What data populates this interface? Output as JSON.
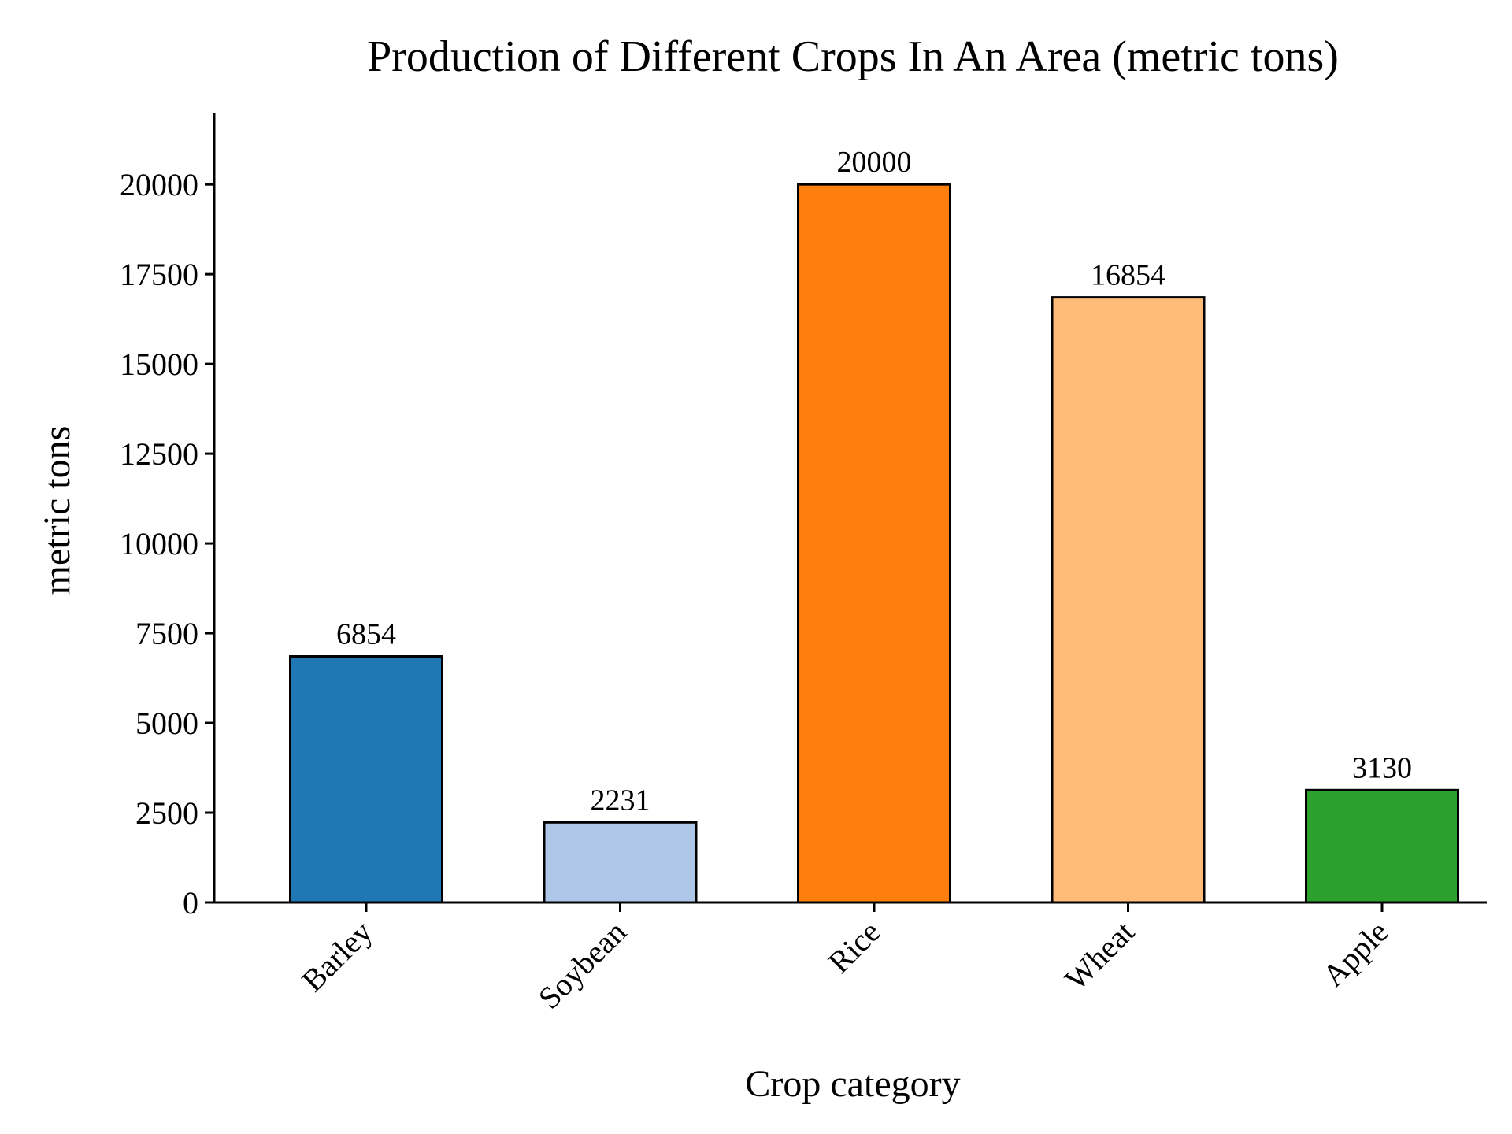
{
  "chart_data": {
    "type": "bar",
    "title": "Production of Different Crops In An Area (metric tons)",
    "xlabel": "Crop category",
    "ylabel": "metric tons",
    "categories": [
      "Barley",
      "Soybean",
      "Rice",
      "Wheat",
      "Apple"
    ],
    "values": [
      6854,
      2231,
      20000,
      16854,
      3130
    ],
    "data_labels": [
      "6854",
      "2231",
      "20000",
      "16854",
      "3130"
    ],
    "colors": [
      "#1f77b4",
      "#aec7e8",
      "#ff7f0e",
      "#ffbb78",
      "#2ca02c"
    ],
    "edge_color": "#000000",
    "ylim": [
      0,
      22000
    ],
    "yticks": [
      0,
      2500,
      5000,
      7500,
      10000,
      12500,
      15000,
      17500,
      20000
    ],
    "ytick_labels": [
      "0",
      "2500",
      "5000",
      "7500",
      "10000",
      "12500",
      "15000",
      "17500",
      "20000"
    ],
    "xtick_rotation": 45,
    "grid": false,
    "legend": "none",
    "spines": [
      "left",
      "bottom"
    ]
  }
}
